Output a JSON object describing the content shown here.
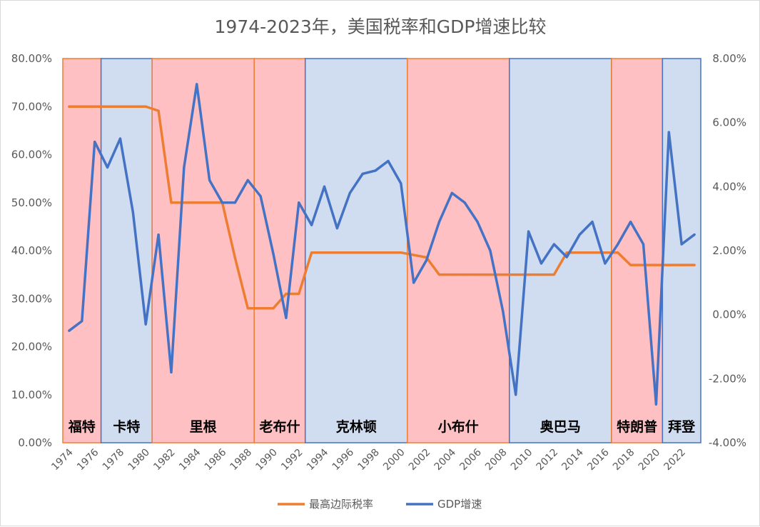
{
  "chart_data": {
    "type": "line",
    "title": "1974-2023年，美国税率和GDP增速比较",
    "x": [
      1974,
      1975,
      1976,
      1977,
      1978,
      1979,
      1980,
      1981,
      1982,
      1983,
      1984,
      1985,
      1986,
      1987,
      1988,
      1989,
      1990,
      1991,
      1992,
      1993,
      1994,
      1995,
      1996,
      1997,
      1998,
      1999,
      2000,
      2001,
      2002,
      2003,
      2004,
      2005,
      2006,
      2007,
      2008,
      2009,
      2010,
      2011,
      2012,
      2013,
      2014,
      2015,
      2016,
      2017,
      2018,
      2019,
      2020,
      2021,
      2022,
      2023
    ],
    "x_tick_labels": [
      "1974",
      "1976",
      "1978",
      "1980",
      "1982",
      "1984",
      "1986",
      "1988",
      "1990",
      "1992",
      "1994",
      "1996",
      "1998",
      "2000",
      "2002",
      "2004",
      "2006",
      "2008",
      "2010",
      "2012",
      "2014",
      "2016",
      "2018",
      "2020",
      "2022"
    ],
    "y_left": {
      "ylim": [
        0,
        80
      ],
      "ticks": [
        "0.00%",
        "10.00%",
        "20.00%",
        "30.00%",
        "40.00%",
        "50.00%",
        "60.00%",
        "70.00%",
        "80.00%"
      ]
    },
    "y_right": {
      "ylim": [
        -4,
        8
      ],
      "ticks": [
        "-4.00%",
        "-2.00%",
        "0.00%",
        "2.00%",
        "4.00%",
        "6.00%",
        "8.00%"
      ]
    },
    "series": [
      {
        "name": "最高边际税率",
        "axis": "left",
        "color": "#ED7D31",
        "values": [
          70,
          70,
          70,
          70,
          70,
          70,
          70,
          69.13,
          50,
          50,
          50,
          50,
          50,
          38.5,
          28,
          28,
          28,
          31,
          31,
          39.6,
          39.6,
          39.6,
          39.6,
          39.6,
          39.6,
          39.6,
          39.6,
          39.1,
          38.6,
          35,
          35,
          35,
          35,
          35,
          35,
          35,
          35,
          35,
          35,
          39.6,
          39.6,
          39.6,
          39.6,
          39.6,
          37,
          37,
          37,
          37,
          37,
          37
        ]
      },
      {
        "name": "GDP增速",
        "axis": "right",
        "color": "#4472C4",
        "values": [
          -0.5,
          -0.2,
          5.4,
          4.6,
          5.5,
          3.2,
          -0.3,
          2.5,
          -1.8,
          4.6,
          7.2,
          4.2,
          3.5,
          3.5,
          4.2,
          3.7,
          1.9,
          -0.1,
          3.5,
          2.8,
          4.0,
          2.7,
          3.8,
          4.4,
          4.5,
          4.8,
          4.1,
          1.0,
          1.7,
          2.9,
          3.8,
          3.5,
          2.9,
          2.0,
          0.1,
          -2.5,
          2.6,
          1.6,
          2.2,
          1.8,
          2.5,
          2.9,
          1.6,
          2.2,
          2.9,
          2.2,
          -2.8,
          5.7,
          2.2,
          2.5
        ]
      }
    ],
    "periods": [
      {
        "label": "福特",
        "party": "R",
        "start": 1974,
        "end": 1977
      },
      {
        "label": "卡特",
        "party": "D",
        "start": 1977,
        "end": 1981
      },
      {
        "label": "里根",
        "party": "R",
        "start": 1981,
        "end": 1989
      },
      {
        "label": "老布什",
        "party": "R",
        "start": 1989,
        "end": 1993
      },
      {
        "label": "克林顿",
        "party": "D",
        "start": 1993,
        "end": 2001
      },
      {
        "label": "小布什",
        "party": "R",
        "start": 2001,
        "end": 2009
      },
      {
        "label": "奥巴马",
        "party": "D",
        "start": 2009,
        "end": 2017
      },
      {
        "label": "特朗普",
        "party": "R",
        "start": 2017,
        "end": 2021
      },
      {
        "label": "拜登",
        "party": "D",
        "start": 2021,
        "end": 2024
      }
    ],
    "party_colors": {
      "R_fill": "#FFC0C3",
      "R_stroke": "#ED7D31",
      "D_fill": "#D0DCF0",
      "D_stroke": "#4472C4"
    },
    "overlap_color": "#7C5CA8",
    "legend": {
      "position": "bottom",
      "items": [
        "最高边际税率",
        "GDP增速"
      ]
    }
  }
}
